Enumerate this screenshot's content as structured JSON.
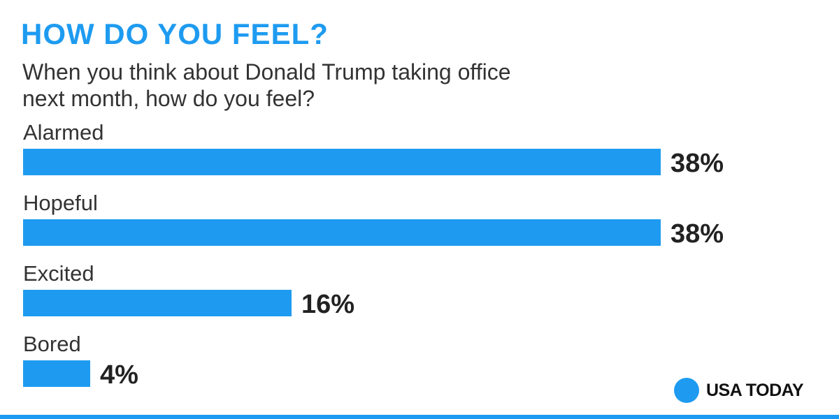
{
  "colors": {
    "accent": "#1e9bf0",
    "text_dark": "#222222",
    "background": "#ffffff"
  },
  "header": {
    "title": "HOW DO YOU FEEL?",
    "subtitle": "When you think about Donald Trump taking office next month, how do you feel?"
  },
  "chart_data": {
    "type": "bar",
    "orientation": "horizontal",
    "title": "HOW DO YOU FEEL?",
    "subtitle": "When you think about Donald Trump taking office next month, how do you feel?",
    "categories": [
      "Alarmed",
      "Hopeful",
      "Excited",
      "Bored"
    ],
    "values": [
      38,
      38,
      16,
      4
    ],
    "value_labels": [
      "38%",
      "38%",
      "16%",
      "4%"
    ],
    "unit": "%",
    "xlabel": "",
    "ylabel": "",
    "xlim": [
      0,
      38
    ],
    "grid": false,
    "legend": "none"
  },
  "branding": {
    "logo_icon": "circle-logo-icon",
    "logo_text": "USA TODAY"
  }
}
